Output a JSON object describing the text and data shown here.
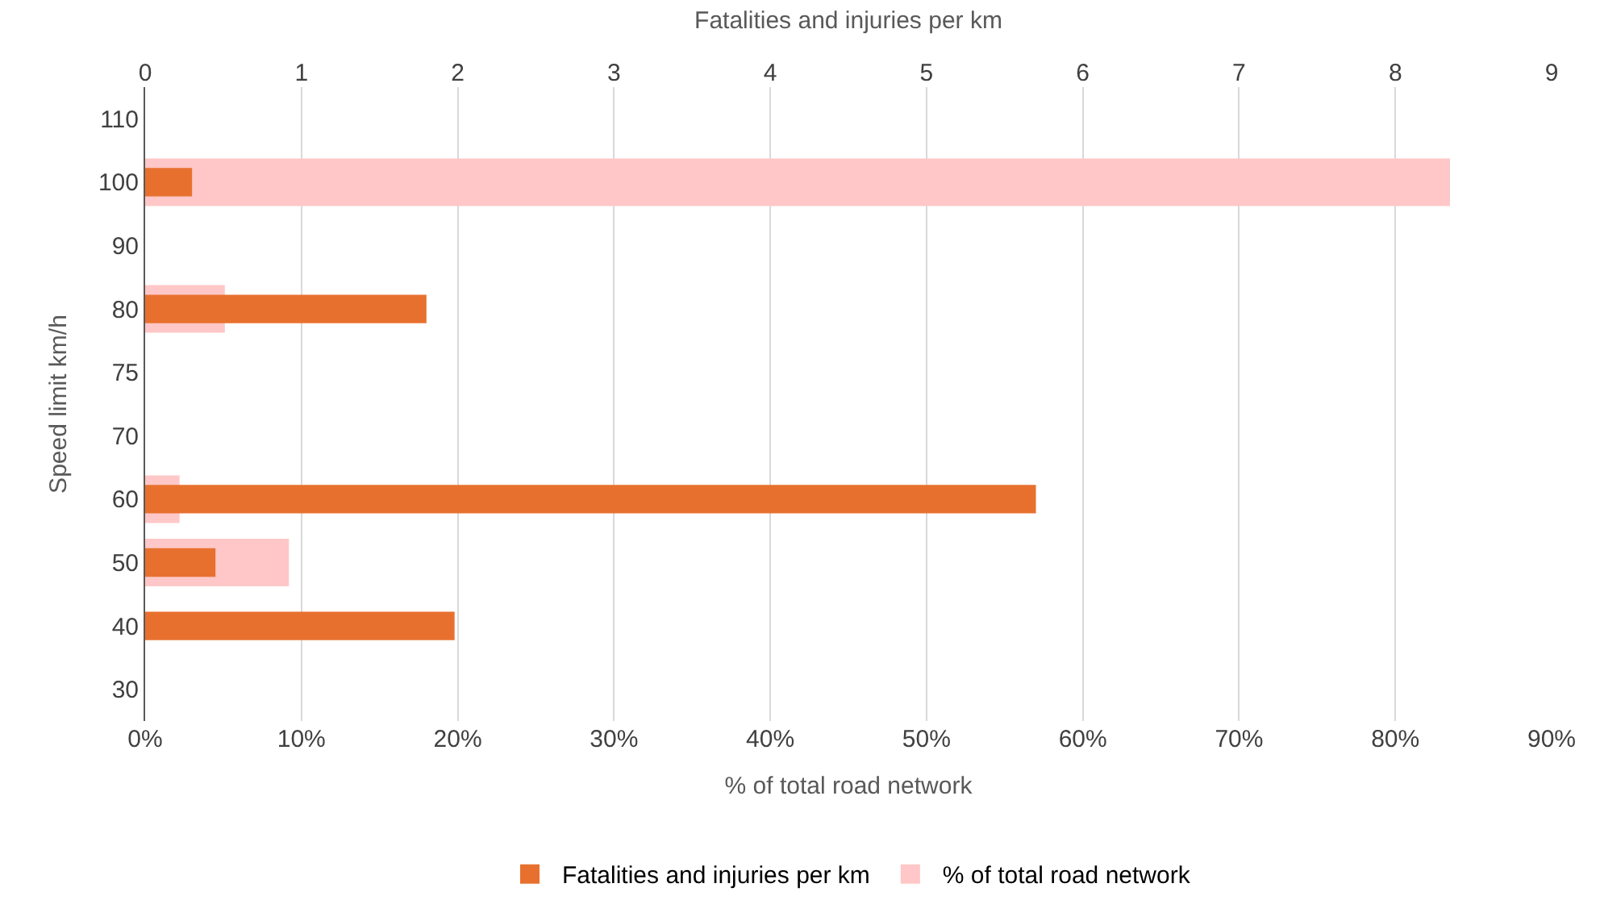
{
  "chart_data": {
    "type": "bar",
    "orientation": "horizontal",
    "categories": [
      "110",
      "100",
      "90",
      "80",
      "75",
      "70",
      "60",
      "50",
      "40",
      "30"
    ],
    "series": [
      {
        "name": "Fatalities and injuries per km",
        "color": "#e8702e",
        "axis": "x2",
        "values": [
          null,
          0.3,
          null,
          1.8,
          null,
          null,
          5.7,
          0.45,
          1.98,
          null
        ]
      },
      {
        "name": "% of total road network",
        "color": "#ffc7c7",
        "values": [
          null,
          83.5,
          null,
          5.1,
          null,
          null,
          2.2,
          9.2,
          null,
          null
        ]
      }
    ],
    "xlabel": "% of total road network",
    "x2label": "Fatalities and injuries per km",
    "ylabel": "Speed limit km/h",
    "xlim": [
      0,
      90
    ],
    "xticks": [
      {
        "value": 0,
        "label": "0%"
      },
      {
        "value": 10,
        "label": "10%"
      },
      {
        "value": 20,
        "label": "20%"
      },
      {
        "value": 30,
        "label": "30%"
      },
      {
        "value": 40,
        "label": "40%"
      },
      {
        "value": 50,
        "label": "50%"
      },
      {
        "value": 60,
        "label": "60%"
      },
      {
        "value": 70,
        "label": "70%"
      },
      {
        "value": 80,
        "label": "80%"
      },
      {
        "value": 90,
        "label": "90%"
      }
    ],
    "x2lim": [
      0,
      9
    ],
    "x2ticks": [
      0,
      1,
      2,
      3,
      4,
      5,
      6,
      7,
      8,
      9
    ],
    "grid": "x",
    "legend": "bottom"
  }
}
